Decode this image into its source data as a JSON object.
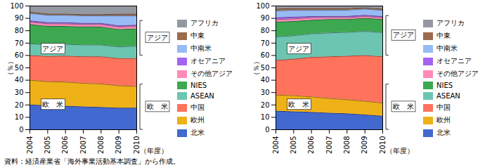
{
  "chart_data": [
    {
      "type": "area",
      "stacked": true,
      "legend": "right",
      "grid": true,
      "xlabel": "（年度）",
      "ylabel": "（％）",
      "x": [
        2004,
        2005,
        2006,
        2007,
        2008,
        2009,
        2010
      ],
      "xlim": [
        2004,
        2010
      ],
      "xticks": [
        2004,
        2005,
        2006,
        2007,
        2008,
        2009,
        2010
      ],
      "ylim": [
        0,
        100
      ],
      "yticks": [
        0,
        10,
        20,
        30,
        40,
        50,
        60,
        70,
        80,
        90,
        100
      ],
      "annotations": [
        {
          "text": "アジア"
        },
        {
          "text": "欧　米"
        },
        {
          "text": "アジア"
        },
        {
          "text": "欧　米"
        }
      ],
      "series": [
        {
          "name": "北米",
          "values": [
            20,
            19.403,
            19,
            18.5,
            18,
            17.5,
            17.5
          ]
        },
        {
          "name": "欧州",
          "values": [
            20,
            19.403,
            19.5,
            19,
            19,
            18,
            17.5
          ]
        },
        {
          "name": "中国",
          "values": [
            20,
            20.398,
            21,
            21.5,
            22,
            22,
            22.5
          ]
        },
        {
          "name": "ASEAN",
          "values": [
            9.5,
            9.453,
            9.5,
            9.5,
            9.5,
            9.5,
            10
          ]
        },
        {
          "name": "NIES",
          "values": [
            15.5,
            14.925,
            14.5,
            14.5,
            14.5,
            14,
            14
          ]
        },
        {
          "name": "その他アジア",
          "values": [
            2,
            1.99,
            2,
            2,
            2,
            2,
            2
          ]
        },
        {
          "name": "オセアニア",
          "values": [
            1,
            0.995,
            1,
            1,
            1,
            1,
            1
          ]
        },
        {
          "name": "中南米",
          "values": [
            6,
            5.97,
            6,
            6,
            6,
            8,
            7.5
          ]
        },
        {
          "name": "中東",
          "values": [
            1,
            0.995,
            1,
            1,
            1,
            1.5,
            1.5
          ]
        },
        {
          "name": "アフリカ",
          "values": [
            5,
            6.468,
            6.5,
            7,
            7,
            6.5,
            6.5
          ]
        }
      ]
    },
    {
      "type": "area",
      "stacked": true,
      "legend": "right",
      "grid": true,
      "xlabel": "（年度）",
      "ylabel": "（％）",
      "x": [
        2004,
        2005,
        2006,
        2007,
        2008,
        2009,
        2010
      ],
      "xlim": [
        2004,
        2010
      ],
      "xticks": [
        2004,
        2005,
        2006,
        2007,
        2008,
        2009,
        2010
      ],
      "ylim": [
        0,
        100
      ],
      "yticks": [
        0,
        10,
        20,
        30,
        40,
        50,
        60,
        70,
        80,
        90,
        100
      ],
      "annotations": [
        {
          "text": "アジア"
        },
        {
          "text": "欧　米"
        },
        {
          "text": "アジア"
        },
        {
          "text": "欧　米"
        }
      ],
      "series": [
        {
          "name": "北米",
          "values": [
            15,
            14.5,
            14,
            13.366,
            12.871,
            12,
            11
          ]
        },
        {
          "name": "欧州",
          "values": [
            13,
            13,
            12.5,
            11.881,
            11.386,
            11,
            10.5
          ]
        },
        {
          "name": "中国",
          "values": [
            28,
            29.5,
            32,
            33.663,
            35.149,
            37,
            37.5
          ]
        },
        {
          "name": "ASEAN",
          "values": [
            19,
            19,
            19,
            19.307,
            19.307,
            19.5,
            19.5
          ]
        },
        {
          "name": "NIES",
          "values": [
            12,
            11.5,
            11,
            10.891,
            10.396,
            10.5,
            10.5
          ]
        },
        {
          "name": "その他アジア",
          "values": [
            2,
            2,
            2,
            1.485,
            1.485,
            1.5,
            1.5
          ]
        },
        {
          "name": "オセアニア",
          "values": [
            1.5,
            1.5,
            1,
            0.99,
            0.99,
            1,
            1
          ]
        },
        {
          "name": "中南米",
          "values": [
            5.5,
            5.5,
            5,
            4.95,
            4.95,
            5,
            5
          ]
        },
        {
          "name": "中東",
          "values": [
            1.5,
            1.5,
            1.5,
            1.485,
            1.485,
            1,
            1
          ]
        },
        {
          "name": "アフリカ",
          "values": [
            2.5,
            2,
            2,
            1.98,
            1.98,
            1.5,
            2.5
          ]
        }
      ]
    }
  ],
  "caption": "資料：経済産業省「海外事業活動基本調査」から作成。"
}
